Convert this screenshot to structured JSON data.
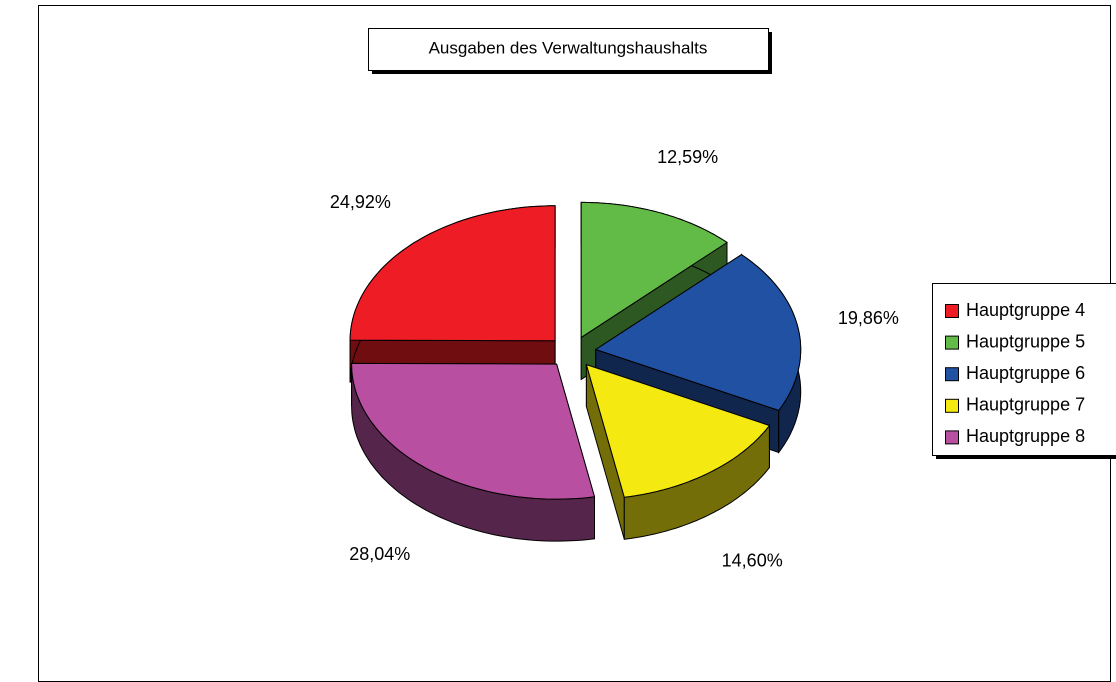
{
  "chart_data": {
    "type": "pie",
    "title": "Ausgaben des Verwaltungshaushalts",
    "categories": [
      "Hauptgruppe 4",
      "Hauptgruppe 5",
      "Hauptgruppe 6",
      "Hauptgruppe 7",
      "Hauptgruppe 8"
    ],
    "values": [
      24.92,
      12.59,
      19.86,
      14.6,
      28.04
    ],
    "value_labels": [
      "24,92%",
      "12,59%",
      "19,86%",
      "14,60%",
      "28,04%"
    ],
    "colors": [
      "#ee1c24",
      "#62bb46",
      "#2151a3",
      "#f4e910",
      "#b84fa0"
    ],
    "legend": "right"
  }
}
